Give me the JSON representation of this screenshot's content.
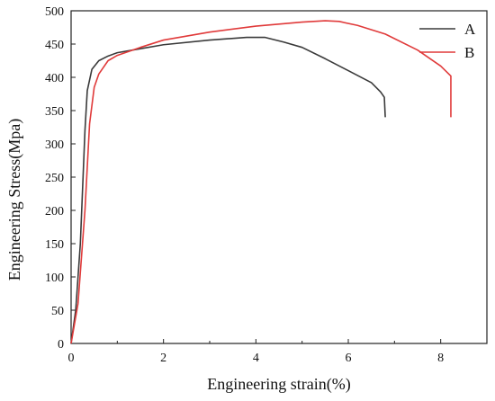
{
  "chart_data": {
    "type": "line",
    "title": "",
    "xlabel": "Engineering strain(%)",
    "ylabel": "Engineering Stress(Mpa)",
    "xlim": [
      0,
      9
    ],
    "ylim": [
      0,
      500
    ],
    "xticks": [
      0,
      2,
      4,
      6,
      8
    ],
    "yticks": [
      0,
      50,
      100,
      150,
      200,
      250,
      300,
      350,
      400,
      450,
      500
    ],
    "grid": false,
    "legend_position": "top-right",
    "series": [
      {
        "name": "A",
        "color": "#3a3a3a",
        "points": [
          [
            0,
            0
          ],
          [
            0.1,
            50
          ],
          [
            0.2,
            150
          ],
          [
            0.3,
            320
          ],
          [
            0.35,
            380
          ],
          [
            0.45,
            412
          ],
          [
            0.6,
            425
          ],
          [
            0.8,
            432
          ],
          [
            1,
            437
          ],
          [
            1.5,
            443
          ],
          [
            2,
            449
          ],
          [
            3,
            456
          ],
          [
            3.8,
            460
          ],
          [
            4.2,
            460
          ],
          [
            4.6,
            453
          ],
          [
            5,
            445
          ],
          [
            5.5,
            428
          ],
          [
            6,
            410
          ],
          [
            6.5,
            392
          ],
          [
            6.7,
            378
          ],
          [
            6.78,
            370
          ],
          [
            6.8,
            340
          ]
        ]
      },
      {
        "name": "B",
        "color": "#e03a3a",
        "points": [
          [
            0,
            0
          ],
          [
            0.15,
            60
          ],
          [
            0.3,
            200
          ],
          [
            0.4,
            330
          ],
          [
            0.5,
            385
          ],
          [
            0.6,
            405
          ],
          [
            0.8,
            425
          ],
          [
            1,
            433
          ],
          [
            1.5,
            445
          ],
          [
            2,
            456
          ],
          [
            3,
            468
          ],
          [
            4,
            477
          ],
          [
            5,
            483
          ],
          [
            5.5,
            485
          ],
          [
            5.8,
            484
          ],
          [
            6.2,
            478
          ],
          [
            6.8,
            465
          ],
          [
            7.5,
            441
          ],
          [
            8,
            417
          ],
          [
            8.22,
            402
          ],
          [
            8.22,
            340
          ]
        ]
      }
    ]
  }
}
